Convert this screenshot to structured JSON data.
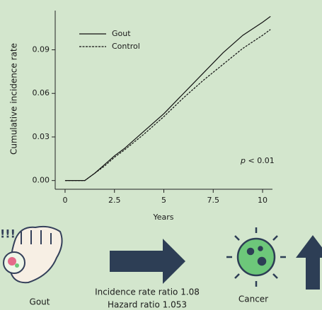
{
  "chart_data": {
    "type": "line",
    "y_label": "Cumulative incidence rate",
    "x_label": "Years",
    "x": [
      0,
      1,
      1.5,
      2,
      2.5,
      3,
      4,
      5,
      6,
      7,
      8,
      9,
      10,
      10.4
    ],
    "series": [
      {
        "name": "Gout",
        "color": "#111111",
        "dashed": false,
        "values": [
          0,
          0,
          0.005,
          0.011,
          0.017,
          0.022,
          0.034,
          0.046,
          0.06,
          0.074,
          0.088,
          0.1,
          0.109,
          0.113
        ]
      },
      {
        "name": "Control",
        "color": "#111111",
        "dashed": true,
        "values": [
          0,
          0,
          0.005,
          0.01,
          0.016,
          0.021,
          0.032,
          0.044,
          0.057,
          0.069,
          0.08,
          0.091,
          0.1,
          0.104
        ]
      }
    ],
    "xlim": [
      -0.5,
      10.5
    ],
    "xticks": [
      0,
      2.5,
      5,
      7.5,
      10
    ],
    "ylim": [
      -0.006,
      0.117
    ],
    "yticks": [
      {
        "value": 0,
        "label": "0.00"
      },
      {
        "value": 0.03,
        "label": "0.03"
      },
      {
        "value": 0.06,
        "label": "0.06"
      },
      {
        "value": 0.09,
        "label": "0.09"
      }
    ],
    "legend": "top-left",
    "p_value": {
      "symbol": "p",
      "text": "< 0.01"
    }
  },
  "graphic": {
    "alert": "!!!",
    "exposure": "Gout",
    "ratios": [
      "Incidence rate ratio 1.08",
      "Hazard ratio 1.053"
    ],
    "outcome": "Cancer"
  }
}
